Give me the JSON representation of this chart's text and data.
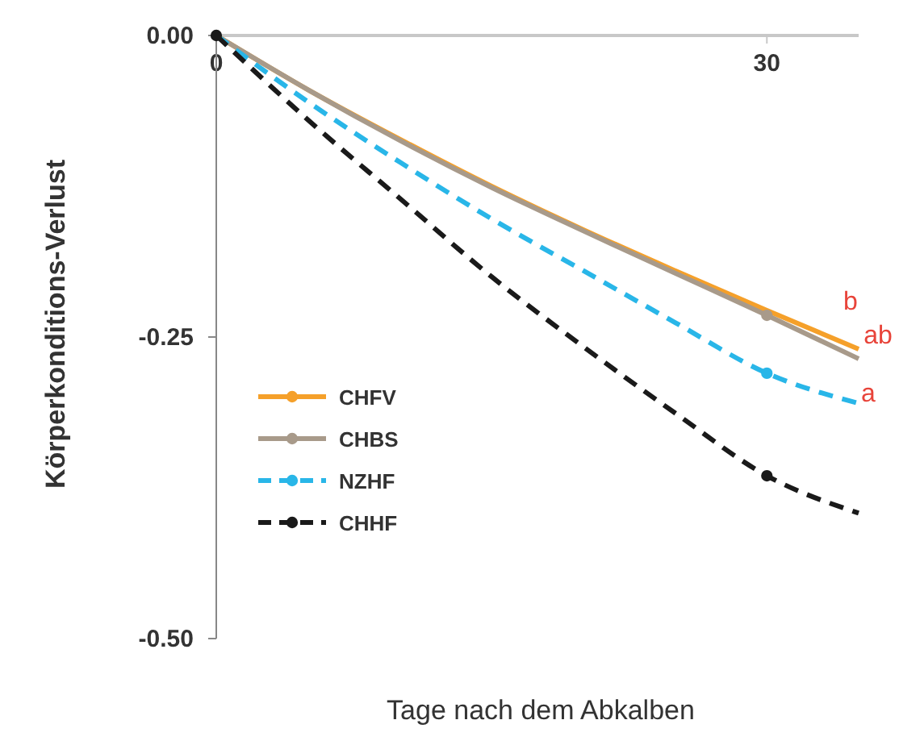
{
  "chart_data": {
    "type": "line",
    "xlabel": "Tage nach dem Abkalben",
    "ylabel": "Körperkonditions-Verlust",
    "xlim": [
      0,
      35
    ],
    "xticks": [
      0,
      30
    ],
    "ylim": [
      -0.5,
      0
    ],
    "yticks": [
      {
        "value": -0.5,
        "label": "-0.50"
      },
      {
        "value": -0.25,
        "label": "-0.25"
      },
      {
        "value": 0,
        "label": "0.00"
      }
    ],
    "grid": false,
    "legend": "bottom left",
    "series": [
      {
        "name": "CHFV",
        "color": "#f5a02a",
        "line_style": "solid",
        "marker": "none",
        "x": [
          0,
          5,
          10,
          15,
          20,
          25,
          30,
          35
        ],
        "values": [
          0,
          -0.045,
          -0.086,
          -0.125,
          -0.161,
          -0.195,
          -0.228,
          -0.26
        ]
      },
      {
        "name": "CHBS",
        "color": "#a89a8a",
        "line_style": "solid",
        "marker": "none",
        "x": [
          0,
          5,
          10,
          15,
          20,
          25,
          30,
          35
        ],
        "values": [
          0,
          -0.045,
          -0.087,
          -0.126,
          -0.162,
          -0.197,
          -0.232,
          -0.268
        ]
      },
      {
        "name": "NZHF",
        "color": "#29b6e8",
        "line_style": "dashed",
        "marker": "none",
        "x": [
          0,
          5,
          10,
          15,
          20,
          25,
          30,
          35
        ],
        "values": [
          0,
          -0.055,
          -0.105,
          -0.152,
          -0.195,
          -0.238,
          -0.28,
          -0.305
        ]
      },
      {
        "name": "CHHF",
        "color": "#1a1a1a",
        "line_style": "dashed",
        "marker": "none",
        "x": [
          0,
          5,
          10,
          15,
          20,
          25,
          30,
          35
        ],
        "values": [
          0,
          -0.07,
          -0.135,
          -0.2,
          -0.258,
          -0.313,
          -0.365,
          -0.396
        ]
      },
      {
        "type": "scatter",
        "color": "#a89a8a",
        "marker": "circle",
        "x": [
          30
        ],
        "values": [
          -0.232
        ]
      },
      {
        "type": "scatter",
        "color": "#29b6e8",
        "marker": "circle",
        "x": [
          30
        ],
        "values": [
          -0.28
        ]
      },
      {
        "type": "scatter",
        "color": "#1a1a1a",
        "marker": "circle",
        "x": [
          0,
          30
        ],
        "values": [
          0,
          -0.365
        ]
      }
    ],
    "annotations": [
      "b",
      "ab",
      "a"
    ]
  }
}
